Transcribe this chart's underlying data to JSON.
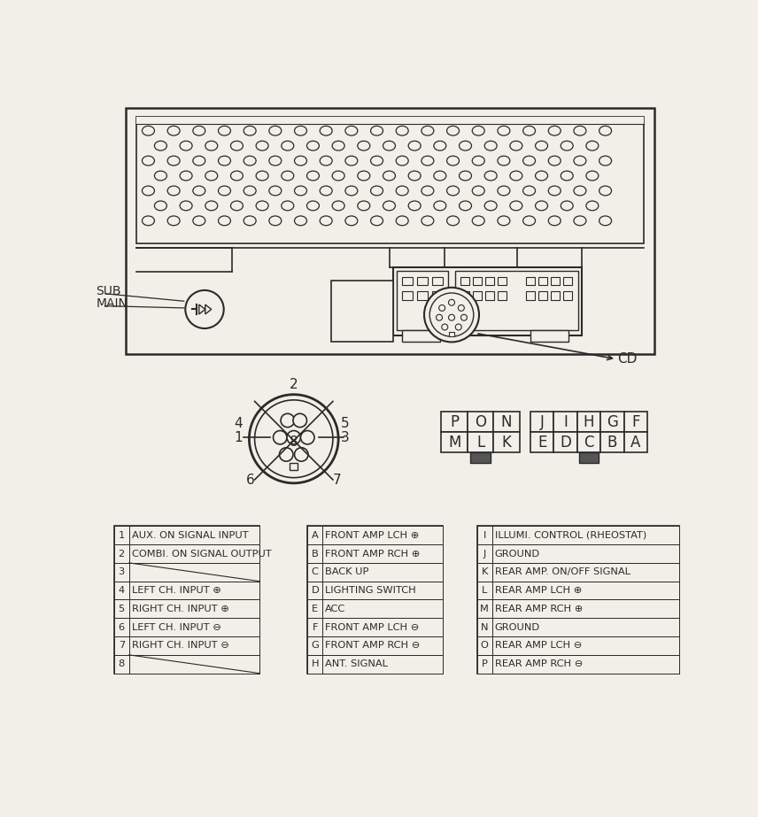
{
  "bg_color": "#f2efe8",
  "line_color": "#2a2a2a",
  "table1": {
    "rows": [
      [
        "1",
        "AUX. ON SIGNAL INPUT"
      ],
      [
        "2",
        "COMBI. ON SIGNAL OUTPUT"
      ],
      [
        "3",
        ""
      ],
      [
        "4",
        "LEFT CH. INPUT ⊕"
      ],
      [
        "5",
        "RIGHT CH. INPUT ⊕"
      ],
      [
        "6",
        "LEFT CH. INPUT ⊖"
      ],
      [
        "7",
        "RIGHT CH. INPUT ⊖"
      ],
      [
        "8",
        ""
      ]
    ]
  },
  "table2": {
    "rows": [
      [
        "A",
        "FRONT AMP LCH ⊕"
      ],
      [
        "B",
        "FRONT AMP RCH ⊕"
      ],
      [
        "C",
        "BACK UP"
      ],
      [
        "D",
        "LIGHTING SWITCH"
      ],
      [
        "E",
        "ACC"
      ],
      [
        "F",
        "FRONT AMP LCH ⊖"
      ],
      [
        "G",
        "FRONT AMP RCH ⊖"
      ],
      [
        "H",
        "ANT. SIGNAL"
      ]
    ]
  },
  "table3": {
    "rows": [
      [
        "I",
        "ILLUMI. CONTROL (RHEOSTAT)"
      ],
      [
        "J",
        "GROUND"
      ],
      [
        "K",
        "REAR AMP. ON/OFF SIGNAL"
      ],
      [
        "L",
        "REAR AMP LCH ⊕"
      ],
      [
        "M",
        "REAR AMP RCH ⊕"
      ],
      [
        "N",
        "GROUND"
      ],
      [
        "O",
        "REAR AMP LCH ⊖"
      ],
      [
        "P",
        "REAR AMP RCH ⊖"
      ]
    ]
  },
  "connector1_top": [
    "P",
    "O",
    "N"
  ],
  "connector1_bot": [
    "M",
    "L",
    "K"
  ],
  "connector2_top": [
    "J",
    "I",
    "H",
    "G",
    "F"
  ],
  "connector2_bot": [
    "E",
    "D",
    "C",
    "B",
    "A"
  ]
}
